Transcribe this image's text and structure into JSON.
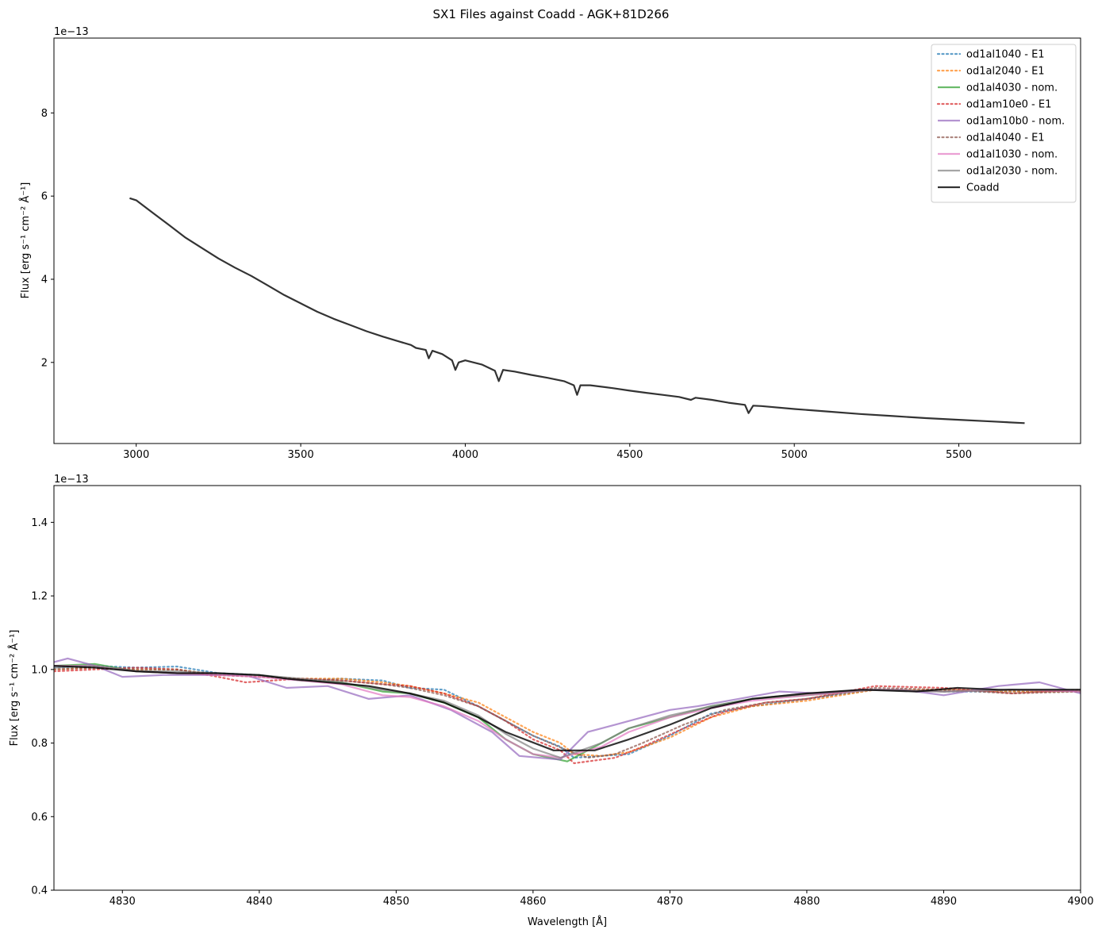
{
  "figure": {
    "title": "SX1 Files against Coadd - AGK+81D266"
  },
  "colors": {
    "od1al1040": "#1f77b4",
    "od1al2040": "#ff7f0e",
    "od1al4030": "#2ca02c",
    "od1am10e0": "#d62728",
    "od1am10b0": "#9467bd",
    "od1al4040": "#8c564b",
    "od1al1030": "#e377c2",
    "od1al2030": "#7f7f7f",
    "coadd": "#000000"
  },
  "chart_data": [
    {
      "type": "line",
      "panel": "top",
      "ylabel": "Flux [erg s⁻¹ cm⁻² Å⁻¹]",
      "xlabel": "",
      "y_offset_label": "1e−13",
      "xlim": [
        2750,
        5870
      ],
      "ylim": [
        0.05,
        9.8
      ],
      "xticks": [
        3000,
        3500,
        4000,
        4500,
        5000,
        5500
      ],
      "xtick_labels": [
        "3000",
        "3500",
        "4000",
        "4500",
        "5000",
        "5500"
      ],
      "yticks": [
        2,
        4,
        6,
        8
      ],
      "ytick_labels": [
        "2",
        "4",
        "6",
        "8"
      ],
      "legend": {
        "placement": "top-right",
        "entries": [
          {
            "label": "od1al1040 - E1",
            "style": "dotted",
            "key": "od1al1040"
          },
          {
            "label": "od1al2040 - E1",
            "style": "dotted",
            "key": "od1al2040"
          },
          {
            "label": "od1al4030 - nom.",
            "style": "solid",
            "key": "od1al4030"
          },
          {
            "label": "od1am10e0 - E1",
            "style": "dotted",
            "key": "od1am10e0"
          },
          {
            "label": "od1am10b0 - nom.",
            "style": "solid",
            "key": "od1am10b0"
          },
          {
            "label": "od1al4040 - E1",
            "style": "dotted",
            "key": "od1al4040"
          },
          {
            "label": "od1al1030 - nom.",
            "style": "solid",
            "key": "od1al1030"
          },
          {
            "label": "od1al2030 - nom.",
            "style": "solid",
            "key": "od1al2030"
          },
          {
            "label": "Coadd",
            "style": "solid",
            "key": "coadd"
          }
        ]
      },
      "series": [
        {
          "key": "coadd",
          "x": [
            2980,
            3000,
            3050,
            3100,
            3150,
            3200,
            3250,
            3300,
            3350,
            3400,
            3450,
            3500,
            3550,
            3600,
            3650,
            3700,
            3750,
            3800,
            3835,
            3850,
            3880,
            3889,
            3900,
            3930,
            3960,
            3970,
            3980,
            4000,
            4050,
            4090,
            4102,
            4115,
            4150,
            4200,
            4250,
            4300,
            4330,
            4340,
            4350,
            4380,
            4450,
            4500,
            4550,
            4600,
            4650,
            4686,
            4700,
            4750,
            4800,
            4850,
            4861,
            4875,
            4900,
            5000,
            5100,
            5200,
            5300,
            5400,
            5500,
            5600,
            5700
          ],
          "y": [
            5.95,
            5.9,
            5.6,
            5.3,
            5.0,
            4.75,
            4.5,
            4.28,
            4.08,
            3.85,
            3.62,
            3.42,
            3.22,
            3.05,
            2.9,
            2.75,
            2.62,
            2.5,
            2.42,
            2.35,
            2.3,
            2.1,
            2.28,
            2.2,
            2.05,
            1.82,
            2.0,
            2.05,
            1.95,
            1.8,
            1.55,
            1.82,
            1.78,
            1.7,
            1.63,
            1.55,
            1.45,
            1.22,
            1.45,
            1.45,
            1.38,
            1.32,
            1.27,
            1.22,
            1.17,
            1.1,
            1.15,
            1.1,
            1.03,
            0.98,
            0.78,
            0.96,
            0.95,
            0.88,
            0.82,
            0.76,
            0.71,
            0.66,
            0.62,
            0.58,
            0.54
          ]
        }
      ]
    },
    {
      "type": "line",
      "panel": "bottom",
      "ylabel": "Flux [erg s⁻¹ cm⁻² Å⁻¹]",
      "xlabel": "Wavelength [Å]",
      "y_offset_label": "1e−13",
      "xlim": [
        4825,
        4900
      ],
      "ylim": [
        0.4,
        1.5
      ],
      "xticks": [
        4830,
        4840,
        4850,
        4860,
        4870,
        4880,
        4890,
        4900
      ],
      "xtick_labels": [
        "4830",
        "4840",
        "4850",
        "4860",
        "4870",
        "4880",
        "4890",
        "4900"
      ],
      "yticks": [
        0.4,
        0.6,
        0.8,
        1.0,
        1.2,
        1.4
      ],
      "ytick_labels": [
        "0.4",
        "0.6",
        "0.8",
        "1.0",
        "1.2",
        "1.4"
      ],
      "series": [
        {
          "key": "od1al1040",
          "style": "dotted",
          "x": [
            4825,
            4828,
            4831,
            4834,
            4837,
            4840,
            4843,
            4846,
            4849,
            4851,
            4853.5,
            4856,
            4858,
            4860,
            4862,
            4863,
            4865,
            4867,
            4870,
            4873,
            4876,
            4880,
            4885,
            4890,
            4895,
            4900
          ],
          "y": [
            1.005,
            1.01,
            1.005,
            1.008,
            0.99,
            0.985,
            0.97,
            0.975,
            0.97,
            0.95,
            0.945,
            0.9,
            0.86,
            0.82,
            0.79,
            0.76,
            0.765,
            0.77,
            0.82,
            0.88,
            0.9,
            0.92,
            0.945,
            0.94,
            0.94,
            0.94
          ]
        },
        {
          "key": "od1al2040",
          "style": "dotted",
          "x": [
            4825,
            4828,
            4831,
            4834,
            4837,
            4840,
            4843,
            4846,
            4849,
            4851,
            4853.5,
            4856,
            4858,
            4860,
            4862,
            4863,
            4865,
            4867,
            4870,
            4873,
            4876,
            4880,
            4885,
            4890,
            4895,
            4900
          ],
          "y": [
            1.0,
            1.005,
            1.0,
            1.0,
            0.985,
            0.98,
            0.975,
            0.975,
            0.965,
            0.955,
            0.935,
            0.91,
            0.87,
            0.83,
            0.8,
            0.77,
            0.765,
            0.775,
            0.815,
            0.87,
            0.9,
            0.915,
            0.945,
            0.945,
            0.94,
            0.94
          ]
        },
        {
          "key": "od1al4030",
          "style": "solid",
          "x": [
            4825,
            4828,
            4831,
            4834,
            4837,
            4840,
            4843,
            4846,
            4849,
            4851,
            4853.5,
            4856,
            4858,
            4860,
            4862.5,
            4865,
            4867,
            4870,
            4873,
            4876,
            4880,
            4885,
            4890,
            4895,
            4900
          ],
          "y": [
            1.01,
            1.015,
            0.995,
            0.99,
            0.985,
            0.985,
            0.97,
            0.965,
            0.94,
            0.935,
            0.91,
            0.87,
            0.81,
            0.77,
            0.75,
            0.8,
            0.84,
            0.87,
            0.9,
            0.92,
            0.93,
            0.945,
            0.94,
            0.945,
            0.94
          ]
        },
        {
          "key": "od1am10e0",
          "style": "dotted",
          "x": [
            4825,
            4828,
            4831,
            4834,
            4837,
            4839,
            4843,
            4846,
            4849,
            4851,
            4853.5,
            4856,
            4858,
            4860,
            4862,
            4863,
            4866,
            4868,
            4871,
            4874,
            4877,
            4880,
            4885,
            4890,
            4895,
            4900
          ],
          "y": [
            0.995,
            1.0,
            1.005,
            1.0,
            0.98,
            0.965,
            0.975,
            0.97,
            0.96,
            0.955,
            0.935,
            0.9,
            0.86,
            0.81,
            0.78,
            0.745,
            0.76,
            0.79,
            0.84,
            0.885,
            0.91,
            0.92,
            0.955,
            0.95,
            0.935,
            0.945
          ]
        },
        {
          "key": "od1am10b0",
          "style": "solid",
          "x": [
            4825,
            4826,
            4828,
            4830,
            4833,
            4836,
            4839,
            4842,
            4845,
            4848,
            4851,
            4854,
            4857,
            4859,
            4862,
            4864,
            4866,
            4868,
            4870,
            4872,
            4875,
            4878,
            4881,
            4884,
            4887,
            4890,
            4894,
            4897,
            4900
          ],
          "y": [
            1.02,
            1.03,
            1.01,
            0.98,
            0.985,
            0.985,
            0.985,
            0.95,
            0.955,
            0.92,
            0.93,
            0.89,
            0.83,
            0.765,
            0.755,
            0.83,
            0.85,
            0.87,
            0.89,
            0.9,
            0.92,
            0.94,
            0.935,
            0.945,
            0.945,
            0.93,
            0.955,
            0.965,
            0.935
          ]
        },
        {
          "key": "od1al4040",
          "style": "dotted",
          "x": [
            4825,
            4828,
            4831,
            4834,
            4837,
            4840,
            4843,
            4846,
            4849,
            4851,
            4853.5,
            4856,
            4858,
            4860,
            4862.5,
            4864,
            4866,
            4868,
            4871,
            4874,
            4877,
            4880,
            4885,
            4890,
            4895,
            4900
          ],
          "y": [
            1.0,
            1.005,
            1.0,
            1.0,
            0.985,
            0.98,
            0.975,
            0.97,
            0.96,
            0.95,
            0.93,
            0.9,
            0.86,
            0.82,
            0.78,
            0.76,
            0.77,
            0.8,
            0.85,
            0.89,
            0.91,
            0.92,
            0.95,
            0.945,
            0.935,
            0.94
          ]
        },
        {
          "key": "od1al1030",
          "style": "solid",
          "x": [
            4825,
            4828,
            4831,
            4834,
            4837,
            4840,
            4843,
            4846,
            4849,
            4851,
            4853.5,
            4856,
            4858,
            4860,
            4862,
            4865,
            4867,
            4870,
            4873,
            4876,
            4880,
            4885,
            4890,
            4895,
            4900
          ],
          "y": [
            1.01,
            1.01,
            0.995,
            0.99,
            0.985,
            0.98,
            0.97,
            0.96,
            0.93,
            0.925,
            0.9,
            0.86,
            0.81,
            0.77,
            0.76,
            0.79,
            0.83,
            0.87,
            0.895,
            0.915,
            0.93,
            0.945,
            0.94,
            0.945,
            0.94
          ]
        },
        {
          "key": "od1al2030",
          "style": "solid",
          "x": [
            4825,
            4828,
            4831,
            4834,
            4837,
            4840,
            4843,
            4846,
            4849,
            4851,
            4853.5,
            4856,
            4858,
            4860,
            4862,
            4865,
            4867,
            4870,
            4873,
            4876,
            4880,
            4885,
            4890,
            4895,
            4900
          ],
          "y": [
            1.005,
            1.01,
            0.995,
            0.995,
            0.99,
            0.985,
            0.975,
            0.965,
            0.945,
            0.935,
            0.915,
            0.875,
            0.825,
            0.785,
            0.76,
            0.8,
            0.84,
            0.875,
            0.9,
            0.92,
            0.935,
            0.945,
            0.94,
            0.945,
            0.945
          ]
        },
        {
          "key": "coadd",
          "style": "solid",
          "x": [
            4825,
            4828,
            4831,
            4834,
            4837,
            4840,
            4842,
            4845,
            4848,
            4851,
            4853.5,
            4856,
            4858,
            4861.5,
            4864.5,
            4867,
            4870,
            4873,
            4876,
            4880,
            4884,
            4888,
            4891,
            4894,
            4897,
            4900
          ],
          "y": [
            1.01,
            1.005,
            0.995,
            0.99,
            0.99,
            0.985,
            0.975,
            0.965,
            0.955,
            0.935,
            0.91,
            0.87,
            0.83,
            0.78,
            0.78,
            0.81,
            0.85,
            0.895,
            0.92,
            0.935,
            0.945,
            0.94,
            0.95,
            0.945,
            0.945,
            0.945
          ]
        }
      ]
    }
  ]
}
